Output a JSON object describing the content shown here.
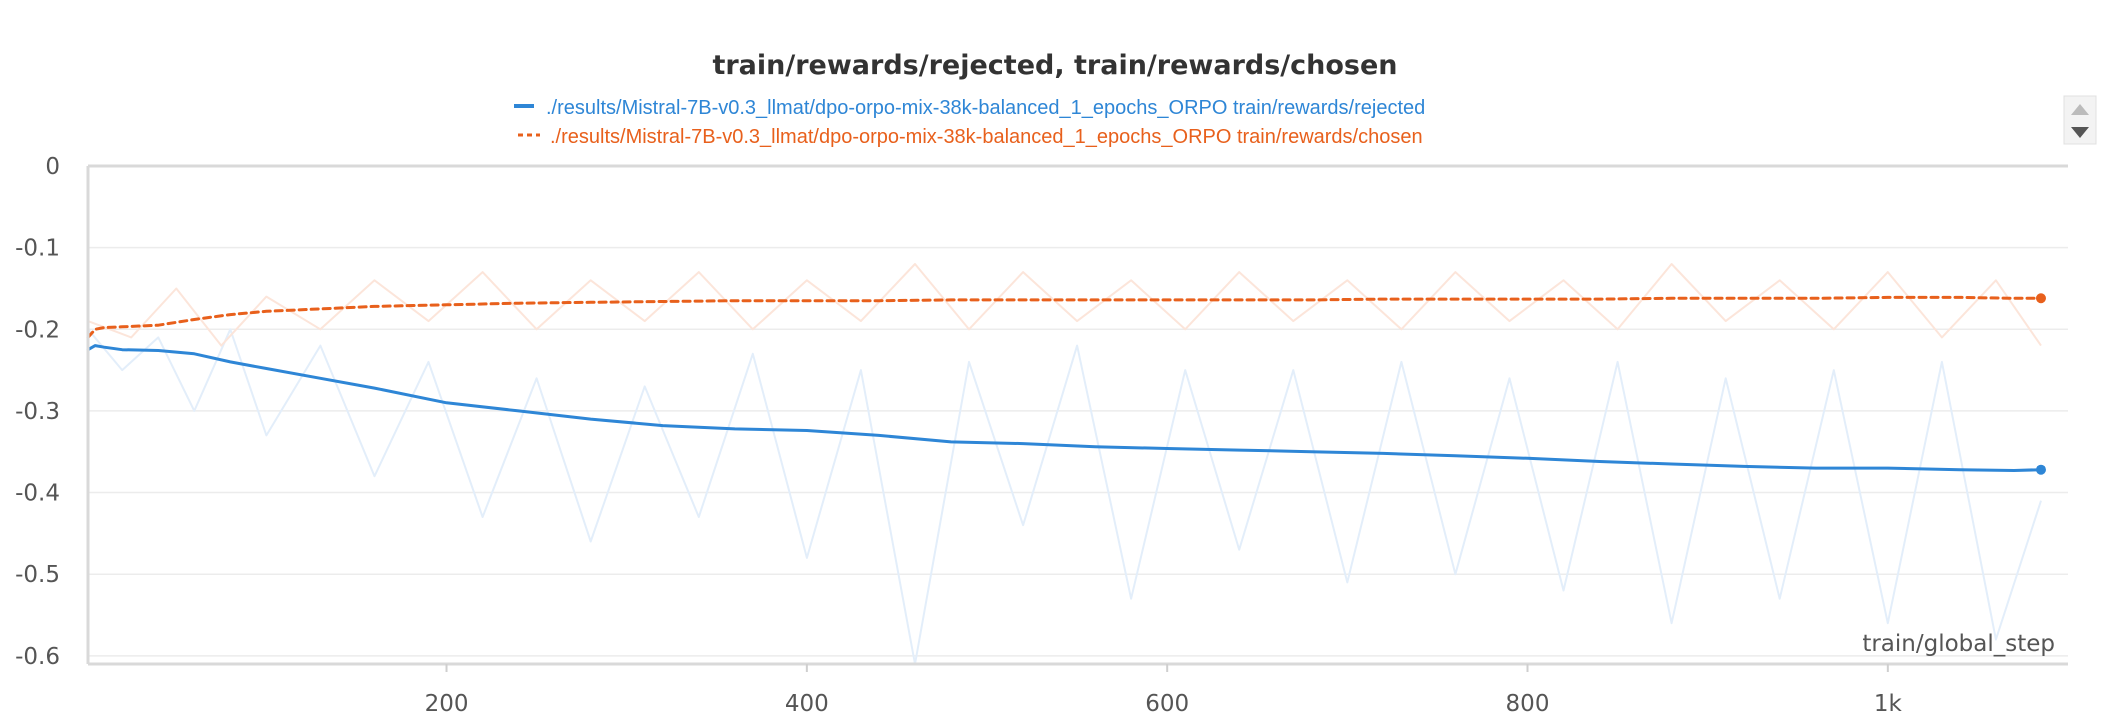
{
  "chart_data": {
    "type": "line",
    "title": "train/rewards/rejected, train/rewards/chosen",
    "xlabel": "train/global_step",
    "ylabel": "",
    "xlim": [
      1,
      1100
    ],
    "ylim": [
      -0.61,
      0
    ],
    "x_ticks": [
      {
        "value": 200,
        "label": "200"
      },
      {
        "value": 400,
        "label": "400"
      },
      {
        "value": 600,
        "label": "600"
      },
      {
        "value": 800,
        "label": "800"
      },
      {
        "value": 1000,
        "label": "1k"
      }
    ],
    "y_ticks": [
      {
        "value": 0,
        "label": "0"
      },
      {
        "value": -0.1,
        "label": "-0.1"
      },
      {
        "value": -0.2,
        "label": "-0.2"
      },
      {
        "value": -0.3,
        "label": "-0.3"
      },
      {
        "value": -0.4,
        "label": "-0.4"
      },
      {
        "value": -0.5,
        "label": "-0.5"
      },
      {
        "value": -0.6,
        "label": "-0.6"
      }
    ],
    "grid": true,
    "legend_position": "top-center",
    "series": [
      {
        "name": "./results/Mistral-7B-v0.3_llmat/dpo-orpo-mix-38k-balanced_1_epochs_ORPO train/rewards/rejected",
        "color": "#2e86d6",
        "raw_color": "#e3eefa",
        "style": "solid",
        "x": [
          1,
          5,
          10,
          20,
          40,
          60,
          80,
          100,
          130,
          160,
          200,
          240,
          280,
          320,
          360,
          400,
          440,
          480,
          520,
          560,
          600,
          640,
          680,
          720,
          760,
          800,
          840,
          880,
          920,
          960,
          1000,
          1040,
          1070,
          1085
        ],
        "values": [
          -0.225,
          -0.22,
          -0.222,
          -0.225,
          -0.226,
          -0.23,
          -0.24,
          -0.248,
          -0.26,
          -0.272,
          -0.29,
          -0.3,
          -0.31,
          -0.318,
          -0.322,
          -0.324,
          -0.33,
          -0.338,
          -0.34,
          -0.344,
          -0.346,
          -0.348,
          -0.35,
          -0.352,
          -0.355,
          -0.358,
          -0.362,
          -0.365,
          -0.368,
          -0.37,
          -0.37,
          -0.372,
          -0.373,
          -0.372
        ],
        "raw_x": [
          1,
          20,
          40,
          60,
          80,
          100,
          130,
          160,
          190,
          220,
          250,
          280,
          310,
          340,
          370,
          400,
          430,
          460,
          490,
          520,
          550,
          580,
          610,
          640,
          670,
          700,
          730,
          760,
          790,
          820,
          850,
          880,
          910,
          940,
          970,
          1000,
          1030,
          1060,
          1085
        ],
        "raw_values": [
          -0.2,
          -0.25,
          -0.21,
          -0.3,
          -0.2,
          -0.33,
          -0.22,
          -0.38,
          -0.24,
          -0.43,
          -0.26,
          -0.46,
          -0.27,
          -0.43,
          -0.23,
          -0.48,
          -0.25,
          -0.61,
          -0.24,
          -0.44,
          -0.22,
          -0.53,
          -0.25,
          -0.47,
          -0.25,
          -0.51,
          -0.24,
          -0.5,
          -0.26,
          -0.52,
          -0.24,
          -0.56,
          -0.26,
          -0.53,
          -0.25,
          -0.56,
          -0.24,
          -0.58,
          -0.41
        ]
      },
      {
        "name": "./results/Mistral-7B-v0.3_llmat/dpo-orpo-mix-38k-balanced_1_epochs_ORPO train/rewards/chosen",
        "color": "#e8601c",
        "raw_color": "#fce5da",
        "style": "dashed",
        "x": [
          1,
          5,
          10,
          20,
          40,
          60,
          80,
          100,
          130,
          160,
          200,
          240,
          280,
          320,
          360,
          400,
          440,
          480,
          520,
          560,
          600,
          640,
          680,
          720,
          760,
          800,
          840,
          880,
          920,
          960,
          1000,
          1040,
          1070,
          1085
        ],
        "values": [
          -0.21,
          -0.2,
          -0.198,
          -0.197,
          -0.195,
          -0.188,
          -0.182,
          -0.178,
          -0.175,
          -0.172,
          -0.17,
          -0.168,
          -0.167,
          -0.166,
          -0.165,
          -0.165,
          -0.165,
          -0.164,
          -0.164,
          -0.164,
          -0.164,
          -0.164,
          -0.164,
          -0.163,
          -0.163,
          -0.163,
          -0.163,
          -0.162,
          -0.162,
          -0.162,
          -0.161,
          -0.161,
          -0.162,
          -0.162
        ],
        "raw_x": [
          1,
          25,
          50,
          75,
          100,
          130,
          160,
          190,
          220,
          250,
          280,
          310,
          340,
          370,
          400,
          430,
          460,
          490,
          520,
          550,
          580,
          610,
          640,
          670,
          700,
          730,
          760,
          790,
          820,
          850,
          880,
          910,
          940,
          970,
          1000,
          1030,
          1060,
          1085
        ],
        "raw_values": [
          -0.19,
          -0.21,
          -0.15,
          -0.22,
          -0.16,
          -0.2,
          -0.14,
          -0.19,
          -0.13,
          -0.2,
          -0.14,
          -0.19,
          -0.13,
          -0.2,
          -0.14,
          -0.19,
          -0.12,
          -0.2,
          -0.13,
          -0.19,
          -0.14,
          -0.2,
          -0.13,
          -0.19,
          -0.14,
          -0.2,
          -0.13,
          -0.19,
          -0.14,
          -0.2,
          -0.12,
          -0.19,
          -0.14,
          -0.2,
          -0.13,
          -0.21,
          -0.14,
          -0.22
        ]
      }
    ]
  },
  "legend": {
    "scroll_up_icon": "triangle-up-icon",
    "scroll_down_icon": "triangle-down-icon"
  }
}
